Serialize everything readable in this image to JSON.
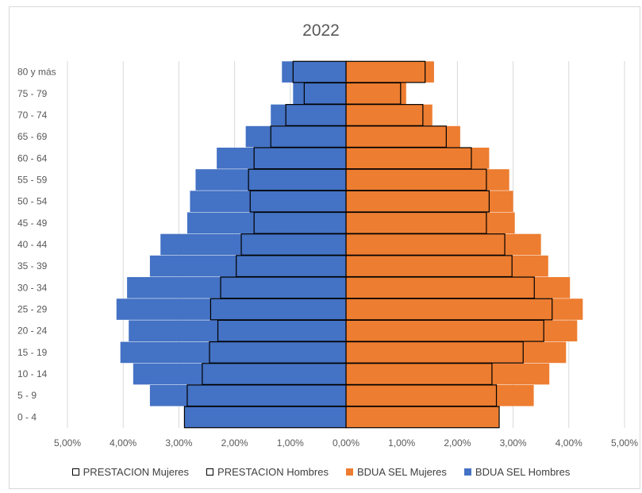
{
  "chart_data": {
    "type": "bar",
    "orientation": "horizontal",
    "title": "2022",
    "categories": [
      "0 - 4",
      "5 - 9",
      "10 - 14",
      "15 - 19",
      "20 - 24",
      "25 - 29",
      "30 - 34",
      "35 - 39",
      "40 - 44",
      "45 - 49",
      "50 - 54",
      "55 - 59",
      "60 - 64",
      "65 - 69",
      "70 - 74",
      "75 - 79",
      "80 y más"
    ],
    "x_ticks": [
      "5,00%",
      "4,00%",
      "3,00%",
      "2,00%",
      "1,00%",
      "0,00%",
      "1,00%",
      "2,00%",
      "3,00%",
      "4,00%",
      "5,00%"
    ],
    "xlim": [
      -5,
      5
    ],
    "grid": true,
    "legend_position": "bottom",
    "series": [
      {
        "name": "PRESTACION Mujeres",
        "side": "right",
        "style": "outline",
        "values": [
          2.75,
          2.7,
          2.62,
          3.18,
          3.55,
          3.7,
          3.38,
          2.98,
          2.85,
          2.52,
          2.57,
          2.52,
          2.25,
          1.8,
          1.38,
          0.98,
          1.42
        ]
      },
      {
        "name": "PRESTACION Hombres",
        "side": "left",
        "style": "outline",
        "values": [
          2.9,
          2.85,
          2.58,
          2.45,
          2.3,
          2.43,
          2.25,
          1.97,
          1.88,
          1.65,
          1.72,
          1.75,
          1.65,
          1.35,
          1.08,
          0.75,
          0.95
        ]
      },
      {
        "name": "BDUA SEL Mujeres",
        "side": "right",
        "style": "fill",
        "color": "#ed7d31",
        "values": [
          2.7,
          3.37,
          3.65,
          3.95,
          4.15,
          4.25,
          4.02,
          3.63,
          3.5,
          3.03,
          3.0,
          2.93,
          2.57,
          2.05,
          1.55,
          1.08,
          1.58
        ]
      },
      {
        "name": "BDUA SEL Hombres",
        "side": "left",
        "style": "fill",
        "color": "#4472c4",
        "values": [
          2.85,
          3.52,
          3.82,
          4.05,
          3.9,
          4.12,
          3.93,
          3.52,
          3.33,
          2.85,
          2.8,
          2.7,
          2.32,
          1.8,
          1.35,
          0.95,
          1.15
        ]
      }
    ]
  }
}
